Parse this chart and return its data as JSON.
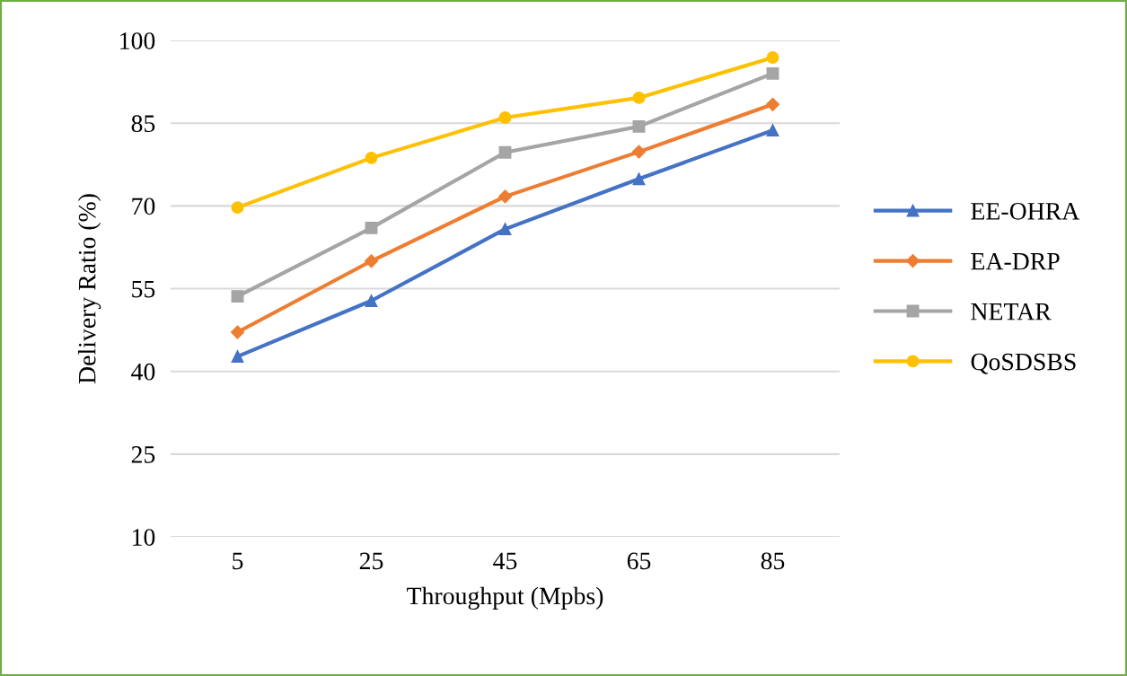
{
  "chart_data": {
    "type": "line",
    "xlabel": "Throughput (Mpbs)",
    "ylabel": "Delivery Ratio (%)",
    "categories": [
      "5",
      "25",
      "45",
      "65",
      "85"
    ],
    "series": [
      {
        "name": "EE-OHRA",
        "color": "#4472c4",
        "marker": "triangle",
        "values": [
          42.7,
          52.8,
          65.8,
          74.9,
          83.7
        ]
      },
      {
        "name": "EA-DRP",
        "color": "#ed7d31",
        "marker": "diamond",
        "values": [
          47.1,
          60.0,
          71.7,
          79.8,
          88.4
        ]
      },
      {
        "name": "NETAR",
        "color": "#a5a5a5",
        "marker": "square",
        "values": [
          53.6,
          66.0,
          79.7,
          84.4,
          94.0
        ]
      },
      {
        "name": "QoSDSBS",
        "color": "#ffc000",
        "marker": "circle",
        "values": [
          69.7,
          78.7,
          86.0,
          89.6,
          96.9
        ]
      }
    ],
    "ylim": [
      10,
      100
    ],
    "yticks": [
      10,
      25,
      40,
      55,
      70,
      85,
      100
    ],
    "grid": "y",
    "legend": "right",
    "line_style": "solid"
  }
}
